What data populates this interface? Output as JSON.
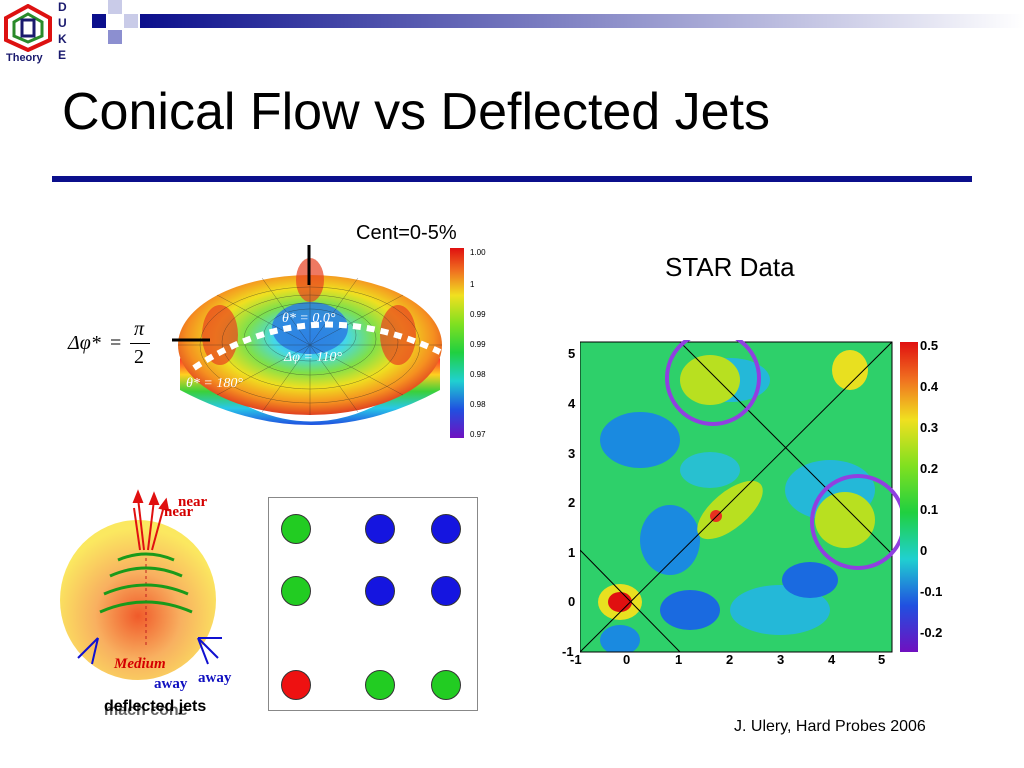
{
  "slide": {
    "title": "Conical Flow vs Deflected Jets",
    "credit": "J. Ulery, Hard Probes 2006"
  },
  "logo": {
    "theory_label": "Theory",
    "duke_letters": [
      "D",
      "U",
      "K",
      "E"
    ]
  },
  "surface_plot": {
    "header": "Cent=0-5%",
    "formula": {
      "lhs": "Δφ*",
      "equals": "=",
      "num": "π",
      "den": "2"
    },
    "labels": [
      "θ* = 0.0°",
      "Δφ = 110°",
      "θ* = 180°"
    ],
    "colorbar_ticks": [
      "1.00",
      "1",
      "0.99",
      "0.99",
      "0.98",
      "0.98",
      "0.97"
    ]
  },
  "star_plot": {
    "header": "STAR Data",
    "x_ticks": [
      "-1",
      "0",
      "1",
      "2",
      "3",
      "4",
      "5"
    ],
    "y_ticks": [
      "5",
      "4",
      "3",
      "2",
      "1",
      "0",
      "-1"
    ],
    "colorbar_ticks": [
      "0.5",
      "0.4",
      "0.3",
      "0.2",
      "0.1",
      "0",
      "-0.1",
      "-0.2"
    ]
  },
  "diagram": {
    "near_label_1": "near",
    "near_label_2": "near",
    "medium_label": "Medium",
    "away_label_1": "away",
    "away_label_2": "away",
    "caption_1": "deflected jets",
    "caption_2": "mach cone"
  },
  "dot_grid": {
    "colors": [
      "#22cc22",
      "#1515e0",
      "#1515e0",
      "#22cc22",
      "#1515e0",
      "#1515e0",
      "#ee1111",
      "#22cc22",
      "#22cc22"
    ]
  }
}
